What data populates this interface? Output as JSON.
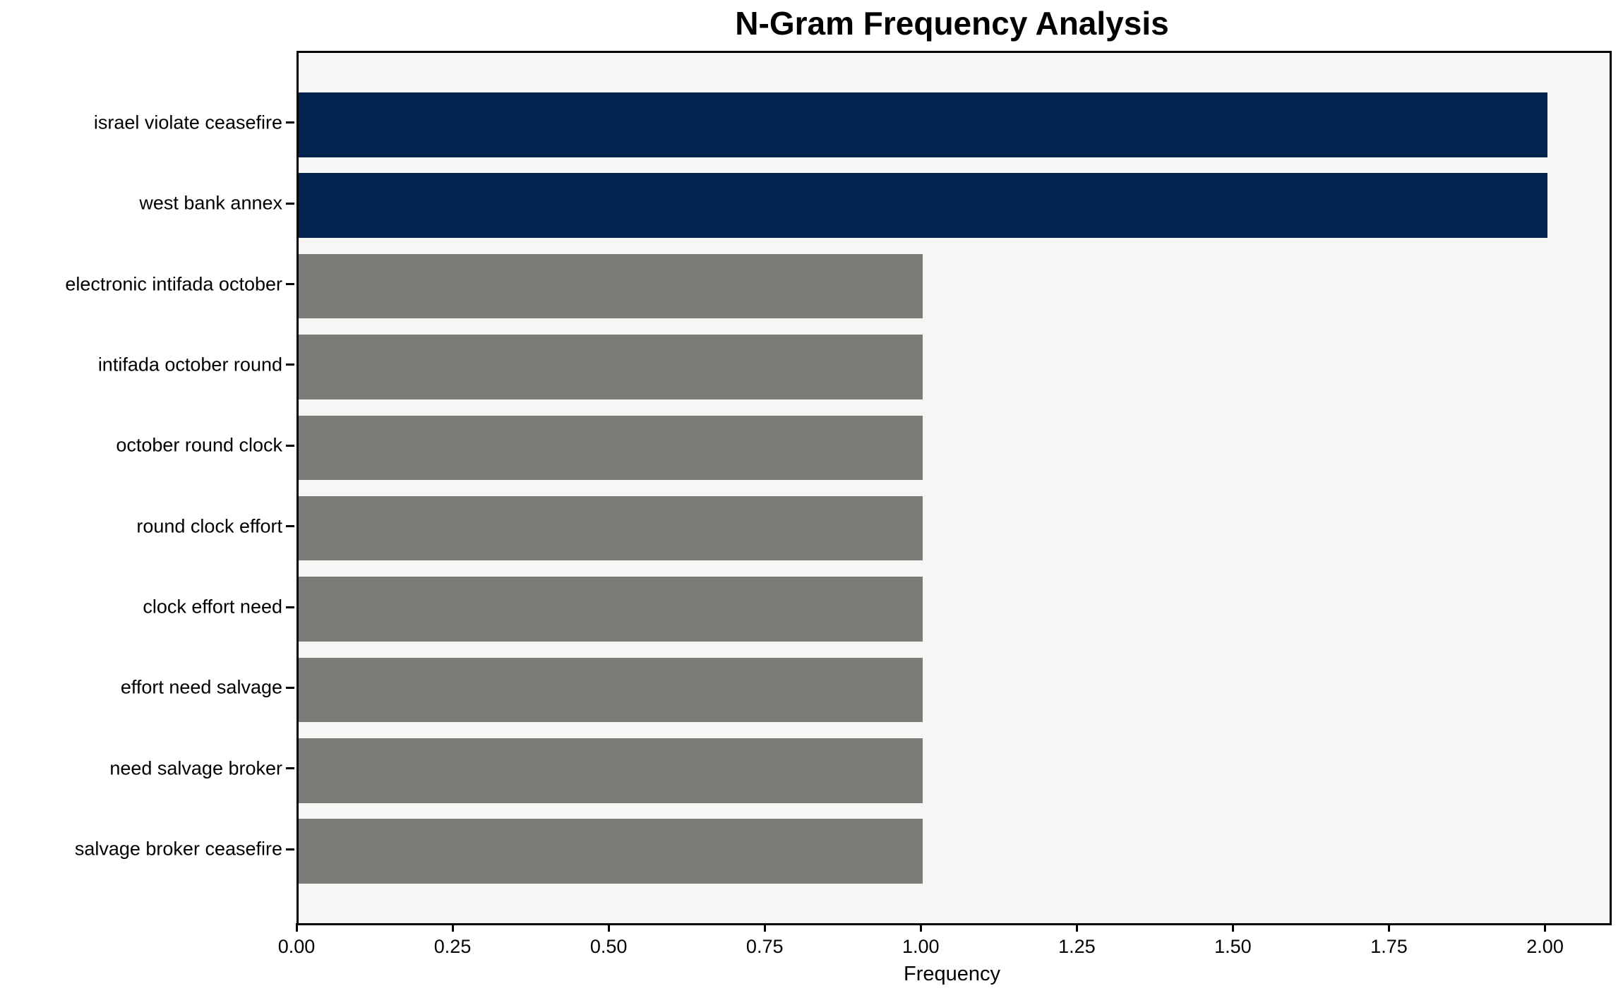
{
  "figure": {
    "title": "N-Gram Frequency Analysis",
    "background_color": "#ffffff",
    "plot_background_color": "#f7f6f5",
    "spine_color": "#000000"
  },
  "chart_data": {
    "type": "bar",
    "orientation": "horizontal",
    "title": "N-Gram Frequency Analysis",
    "xlabel": "Frequency",
    "ylabel": "",
    "categories": [
      "israel violate ceasefire",
      "west bank annex",
      "electronic intifada october",
      "intifada october round",
      "october round clock",
      "round clock effort",
      "clock effort need",
      "effort need salvage",
      "need salvage broker",
      "salvage broker ceasefire"
    ],
    "values": [
      2,
      2,
      1,
      1,
      1,
      1,
      1,
      1,
      1,
      1
    ],
    "bar_colors": [
      "#04234e",
      "#04234e",
      "#7c7b77",
      "#7c7b77",
      "#7c7b77",
      "#7c7b77",
      "#7c7b77",
      "#7c7b77",
      "#7c7b77",
      "#7c7b77"
    ],
    "highlight_color": "#04234e",
    "default_bar_color": "#7c7b77",
    "xlim": [
      0,
      2.1
    ],
    "xticks": [
      {
        "value": 0.0,
        "label": "0.00"
      },
      {
        "value": 0.25,
        "label": "0.25"
      },
      {
        "value": 0.5,
        "label": "0.50"
      },
      {
        "value": 0.75,
        "label": "0.75"
      },
      {
        "value": 1.0,
        "label": "1.00"
      },
      {
        "value": 1.25,
        "label": "1.25"
      },
      {
        "value": 1.5,
        "label": "1.50"
      },
      {
        "value": 1.75,
        "label": "1.75"
      },
      {
        "value": 2.0,
        "label": "2.00"
      }
    ],
    "grid": false,
    "legend": null
  }
}
